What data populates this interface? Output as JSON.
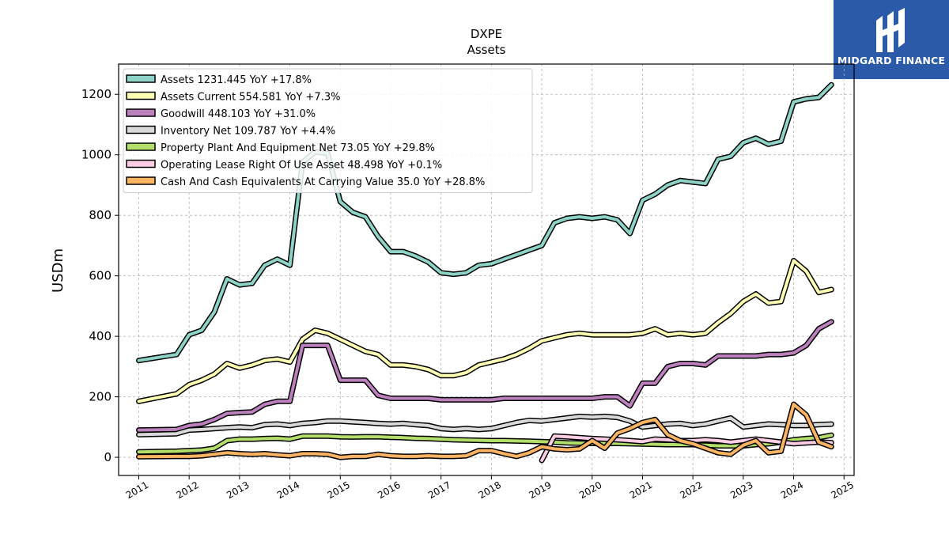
{
  "logo": {
    "text": "MIDGARD FINANCE",
    "color": "#2b5aa8"
  },
  "chart_data": {
    "type": "line",
    "title": "DXPE",
    "subtitle": "Assets",
    "ylabel": "USDm",
    "xlabel": "",
    "xlim": [
      2010.6,
      2025.2
    ],
    "ylim": [
      -60,
      1300
    ],
    "yticks": [
      0,
      200,
      400,
      600,
      800,
      1000,
      1200
    ],
    "xticks": [
      "2011",
      "2012",
      "2013",
      "2014",
      "2015",
      "2016",
      "2017",
      "2018",
      "2019",
      "2020",
      "2021",
      "2022",
      "2023",
      "2024",
      "2025"
    ],
    "grid": true,
    "legend_position": "top-left",
    "series": [
      {
        "name": "Assets  1231.445 YoY +17.8%",
        "color": "#8dd3c7",
        "x": [
          2011.0,
          2011.75,
          2012.0,
          2012.25,
          2012.5,
          2012.75,
          2013.0,
          2013.25,
          2013.5,
          2013.75,
          2014.0,
          2014.25,
          2014.5,
          2014.75,
          2015.0,
          2015.25,
          2015.5,
          2015.75,
          2016.0,
          2016.25,
          2016.5,
          2016.75,
          2017.0,
          2017.25,
          2017.5,
          2017.75,
          2018.0,
          2018.25,
          2018.5,
          2018.75,
          2019.0,
          2019.25,
          2019.5,
          2019.75,
          2020.0,
          2020.25,
          2020.5,
          2020.75,
          2021.0,
          2021.25,
          2021.5,
          2021.75,
          2022.0,
          2022.25,
          2022.5,
          2022.75,
          2023.0,
          2023.25,
          2023.5,
          2023.75,
          2024.0,
          2024.25,
          2024.5,
          2024.75
        ],
        "y": [
          320,
          340,
          405,
          420,
          480,
          590,
          570,
          575,
          635,
          655,
          635,
          975,
          1010,
          1005,
          845,
          810,
          795,
          730,
          680,
          680,
          665,
          645,
          610,
          605,
          610,
          635,
          640,
          655,
          670,
          685,
          700,
          775,
          790,
          795,
          790,
          795,
          785,
          740,
          850,
          870,
          900,
          915,
          910,
          905,
          985,
          995,
          1040,
          1055,
          1035,
          1045,
          1175,
          1185,
          1190,
          1231.4
        ]
      },
      {
        "name": "Assets Current  554.581 YoY +7.3%",
        "color": "#ffffb3",
        "x": [
          2011.0,
          2011.75,
          2012.0,
          2012.25,
          2012.5,
          2012.75,
          2013.0,
          2013.25,
          2013.5,
          2013.75,
          2014.0,
          2014.25,
          2014.5,
          2014.75,
          2015.0,
          2015.25,
          2015.5,
          2015.75,
          2016.0,
          2016.25,
          2016.5,
          2016.75,
          2017.0,
          2017.25,
          2017.5,
          2017.75,
          2018.0,
          2018.25,
          2018.5,
          2018.75,
          2019.0,
          2019.25,
          2019.5,
          2019.75,
          2020.0,
          2020.25,
          2020.5,
          2020.75,
          2021.0,
          2021.25,
          2021.5,
          2021.75,
          2022.0,
          2022.25,
          2022.5,
          2022.75,
          2023.0,
          2023.25,
          2023.5,
          2023.75,
          2024.0,
          2024.25,
          2024.5,
          2024.75
        ],
        "y": [
          185,
          210,
          240,
          255,
          275,
          310,
          295,
          305,
          320,
          325,
          315,
          390,
          420,
          410,
          390,
          370,
          350,
          340,
          305,
          305,
          300,
          290,
          270,
          270,
          280,
          305,
          315,
          325,
          340,
          360,
          385,
          395,
          405,
          410,
          405,
          405,
          405,
          405,
          410,
          425,
          405,
          410,
          405,
          410,
          445,
          475,
          515,
          540,
          510,
          515,
          650,
          615,
          545,
          554.6
        ]
      },
      {
        "name": "Goodwill  448.103 YoY +31.0%",
        "color": "#bc80bd",
        "x": [
          2011.0,
          2011.75,
          2012.0,
          2012.25,
          2012.5,
          2012.75,
          2013.0,
          2013.25,
          2013.5,
          2013.75,
          2014.0,
          2014.25,
          2014.5,
          2014.75,
          2015.0,
          2015.25,
          2015.5,
          2015.75,
          2016.0,
          2016.25,
          2016.5,
          2016.75,
          2017.0,
          2017.25,
          2017.5,
          2017.75,
          2018.0,
          2018.25,
          2018.5,
          2018.75,
          2019.0,
          2019.25,
          2019.5,
          2019.75,
          2020.0,
          2020.25,
          2020.5,
          2020.75,
          2021.0,
          2021.25,
          2021.5,
          2021.75,
          2022.0,
          2022.25,
          2022.5,
          2022.75,
          2023.0,
          2023.25,
          2023.5,
          2023.75,
          2024.0,
          2024.25,
          2024.5,
          2024.75
        ],
        "y": [
          90,
          92,
          105,
          110,
          125,
          145,
          148,
          150,
          175,
          185,
          185,
          370,
          370,
          370,
          255,
          255,
          255,
          205,
          195,
          195,
          195,
          195,
          190,
          190,
          190,
          190,
          190,
          195,
          195,
          195,
          195,
          195,
          195,
          195,
          195,
          200,
          200,
          170,
          245,
          245,
          300,
          310,
          310,
          305,
          335,
          335,
          335,
          335,
          340,
          340,
          345,
          370,
          425,
          448.1
        ]
      },
      {
        "name": "Inventory Net  109.787 YoY +4.4%",
        "color": "#d9d9d9",
        "x": [
          2011.0,
          2011.75,
          2012.0,
          2012.25,
          2012.5,
          2012.75,
          2013.0,
          2013.25,
          2013.5,
          2013.75,
          2014.0,
          2014.25,
          2014.5,
          2014.75,
          2015.0,
          2015.25,
          2015.5,
          2015.75,
          2016.0,
          2016.25,
          2016.5,
          2016.75,
          2017.0,
          2017.25,
          2017.5,
          2017.75,
          2018.0,
          2018.25,
          2018.5,
          2018.75,
          2019.0,
          2019.25,
          2019.5,
          2019.75,
          2020.0,
          2020.25,
          2020.5,
          2020.75,
          2021.0,
          2021.25,
          2021.5,
          2021.75,
          2022.0,
          2022.25,
          2022.5,
          2022.75,
          2023.0,
          2023.25,
          2023.5,
          2023.75,
          2024.0,
          2024.25,
          2024.5,
          2024.75
        ],
        "y": [
          75,
          78,
          90,
          92,
          95,
          98,
          100,
          98,
          108,
          110,
          105,
          112,
          115,
          120,
          120,
          117,
          115,
          112,
          110,
          112,
          108,
          105,
          95,
          92,
          95,
          92,
          95,
          105,
          115,
          122,
          120,
          125,
          130,
          135,
          133,
          135,
          132,
          120,
          100,
          105,
          110,
          112,
          105,
          110,
          120,
          130,
          100,
          105,
          110,
          108,
          105,
          105,
          108,
          109.8
        ]
      },
      {
        "name": "Property Plant And Equipment Net  73.05 YoY +29.8%",
        "color": "#b3de69",
        "x": [
          2011.0,
          2011.75,
          2012.0,
          2012.25,
          2012.5,
          2012.75,
          2013.0,
          2013.25,
          2013.5,
          2013.75,
          2014.0,
          2014.25,
          2014.5,
          2014.75,
          2015.0,
          2015.25,
          2015.5,
          2015.75,
          2016.0,
          2016.25,
          2016.5,
          2016.75,
          2017.0,
          2017.25,
          2017.5,
          2017.75,
          2018.0,
          2018.25,
          2018.5,
          2018.75,
          2019.0,
          2019.25,
          2019.5,
          2019.75,
          2020.0,
          2020.25,
          2020.5,
          2020.75,
          2021.0,
          2021.25,
          2021.5,
          2021.75,
          2022.0,
          2022.25,
          2022.5,
          2022.75,
          2023.0,
          2023.25,
          2023.5,
          2023.75,
          2024.0,
          2024.25,
          2024.5,
          2024.75
        ],
        "y": [
          18,
          20,
          22,
          24,
          30,
          55,
          60,
          60,
          62,
          63,
          60,
          70,
          70,
          70,
          68,
          67,
          68,
          68,
          66,
          65,
          63,
          62,
          60,
          58,
          57,
          56,
          55,
          55,
          54,
          53,
          52,
          50,
          48,
          47,
          46,
          46,
          46,
          45,
          44,
          43,
          42,
          42,
          42,
          40,
          38,
          38,
          38,
          42,
          45,
          50,
          58,
          62,
          65,
          73.05
        ]
      },
      {
        "name": "Operating Lease Right Of Use Asset  48.498 YoY +0.1%",
        "color": "#fccde5",
        "x": [
          2019.0,
          2019.25,
          2019.5,
          2019.75,
          2020.0,
          2020.25,
          2020.5,
          2020.75,
          2021.0,
          2021.25,
          2021.5,
          2021.75,
          2022.0,
          2022.25,
          2022.5,
          2022.75,
          2023.0,
          2023.25,
          2023.5,
          2023.75,
          2024.0,
          2024.25,
          2024.5,
          2024.75
        ],
        "y": [
          -10,
          70,
          68,
          65,
          62,
          60,
          58,
          55,
          52,
          60,
          58,
          55,
          55,
          58,
          55,
          50,
          55,
          60,
          55,
          50,
          45,
          48,
          50,
          48.5
        ]
      },
      {
        "name": "Cash And Cash Equivalents At Carrying Value  35.0 YoY +28.8%",
        "color": "#fdb462",
        "x": [
          2011.0,
          2011.75,
          2012.0,
          2012.25,
          2012.5,
          2012.75,
          2013.0,
          2013.25,
          2013.5,
          2013.75,
          2014.0,
          2014.25,
          2014.5,
          2014.75,
          2015.0,
          2015.25,
          2015.5,
          2015.75,
          2016.0,
          2016.25,
          2016.5,
          2016.75,
          2017.0,
          2017.25,
          2017.5,
          2017.75,
          2018.0,
          2018.25,
          2018.5,
          2018.75,
          2019.0,
          2019.25,
          2019.5,
          2019.75,
          2020.0,
          2020.25,
          2020.5,
          2020.75,
          2021.0,
          2021.25,
          2021.5,
          2021.75,
          2022.0,
          2022.25,
          2022.5,
          2022.75,
          2023.0,
          2023.25,
          2023.5,
          2023.75,
          2024.0,
          2024.25,
          2024.5,
          2024.75
        ],
        "y": [
          2,
          3,
          3,
          5,
          10,
          15,
          12,
          10,
          12,
          8,
          5,
          12,
          12,
          10,
          0,
          3,
          3,
          10,
          5,
          3,
          3,
          5,
          3,
          3,
          5,
          22,
          22,
          12,
          3,
          15,
          35,
          28,
          25,
          28,
          55,
          30,
          80,
          95,
          115,
          125,
          75,
          55,
          45,
          30,
          15,
          10,
          40,
          55,
          15,
          20,
          175,
          140,
          50,
          35.0
        ]
      }
    ]
  }
}
